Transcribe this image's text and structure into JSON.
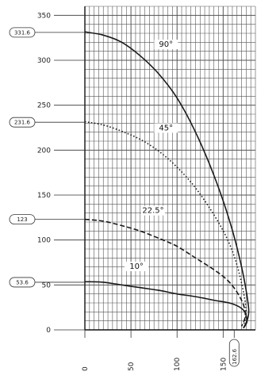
{
  "chart_data": {
    "type": "line",
    "title": "",
    "xlabel": "",
    "ylabel": "",
    "xlim": [
      0,
      185
    ],
    "ylim": [
      0,
      360
    ],
    "x_ticks": [
      0,
      50,
      100,
      150
    ],
    "x_tick_labels": [
      "0",
      "50",
      "100",
      "150"
    ],
    "x_callout": {
      "value": 162,
      "label": "162.6"
    },
    "y_ticks": [
      0,
      50,
      100,
      150,
      200,
      250,
      300,
      350
    ],
    "y_tick_labels": [
      "0",
      "50",
      "100",
      "150",
      "200",
      "250",
      "300",
      "350"
    ],
    "y_callouts": [
      {
        "value": 331,
        "label": "331.6"
      },
      {
        "value": 231,
        "label": "231.6"
      },
      {
        "value": 123,
        "label": "123"
      },
      {
        "value": 53,
        "label": "53.6"
      }
    ],
    "grid": true,
    "series": [
      {
        "name": "90°",
        "style": "solid",
        "points": [
          [
            0,
            331.6
          ],
          [
            20,
            328
          ],
          [
            40,
            320
          ],
          [
            60,
            305
          ],
          [
            80,
            285
          ],
          [
            100,
            258
          ],
          [
            120,
            220
          ],
          [
            140,
            172
          ],
          [
            158,
            118
          ],
          [
            170,
            70
          ],
          [
            177,
            30
          ],
          [
            177,
            14
          ],
          [
            172,
            2
          ]
        ]
      },
      {
        "name": "45°",
        "style": "dotted",
        "points": [
          [
            0,
            231.6
          ],
          [
            20,
            228
          ],
          [
            40,
            221
          ],
          [
            60,
            212
          ],
          [
            80,
            199
          ],
          [
            100,
            181
          ],
          [
            120,
            158
          ],
          [
            140,
            128
          ],
          [
            155,
            100
          ],
          [
            165,
            72
          ],
          [
            172,
            42
          ],
          [
            175,
            20
          ],
          [
            172,
            5
          ]
        ]
      },
      {
        "name": "22.5°",
        "style": "dashed",
        "points": [
          [
            0,
            123
          ],
          [
            20,
            121
          ],
          [
            40,
            116
          ],
          [
            60,
            110
          ],
          [
            80,
            102
          ],
          [
            100,
            93
          ],
          [
            120,
            80
          ],
          [
            140,
            67
          ],
          [
            155,
            55
          ],
          [
            165,
            42
          ],
          [
            172,
            28
          ],
          [
            174,
            15
          ],
          [
            170,
            4
          ]
        ]
      },
      {
        "name": "10°",
        "style": "solid",
        "points": [
          [
            0,
            53.6
          ],
          [
            20,
            53
          ],
          [
            40,
            50
          ],
          [
            60,
            47
          ],
          [
            80,
            44
          ],
          [
            100,
            40
          ],
          [
            120,
            37
          ],
          [
            140,
            33
          ],
          [
            160,
            29
          ],
          [
            172,
            22
          ],
          [
            176,
            10
          ],
          [
            172,
            2
          ]
        ]
      }
    ],
    "curve_labels": [
      {
        "text": "90°",
        "x": 88,
        "y": 315
      },
      {
        "text": "45°",
        "x": 88,
        "y": 222
      },
      {
        "text": "22.5°",
        "x": 74,
        "y": 130
      },
      {
        "text": "10°",
        "x": 56,
        "y": 68
      }
    ]
  }
}
